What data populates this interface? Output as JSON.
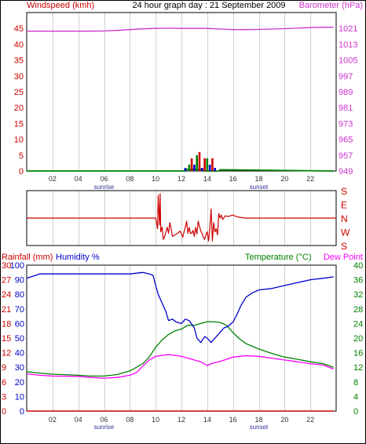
{
  "header": {
    "title": "24 hour graph day : 21 September 2009",
    "wind_label": "Windspeed (kmh)",
    "baro_label": "Barometer (hPa)"
  },
  "colors": {
    "background": "#ffffff",
    "frame": "#000000",
    "grid": "#d0d0d0",
    "wind_axis": "#cc0000",
    "baro": "#cc33cc",
    "temp": "#008000",
    "humidity": "#0000cc",
    "dewpoint": "#ff00ff",
    "rain": "#cc0000",
    "compass": "#cc0000"
  },
  "chart_data": [
    {
      "type": "line",
      "panel": "wind-barometer",
      "title": "24 hour graph day : 21 September 2009",
      "x_ticks": [
        "02",
        "04",
        "06",
        "08",
        "10",
        "12",
        "14",
        "16",
        "18",
        "20",
        "22"
      ],
      "x_annotations": [
        {
          "hour": 6,
          "label": "sunrise"
        },
        {
          "hour": 18,
          "label": "sunset"
        }
      ],
      "xlim": [
        0,
        24
      ],
      "left_axis": {
        "label": "Windspeed (kmh)",
        "ylim": [
          0,
          50
        ],
        "ticks": [
          0,
          5,
          10,
          15,
          20,
          25,
          30,
          35,
          40,
          45
        ]
      },
      "right_axis": {
        "label": "Barometer (hPa)",
        "ylim": [
          949,
          1029
        ],
        "ticks": [
          949,
          957,
          965,
          973,
          981,
          989,
          997,
          1005,
          1013,
          1021
        ]
      },
      "series": [
        {
          "name": "Barometer (hPa)",
          "axis": "right",
          "x": [
            0,
            2,
            4,
            5,
            6,
            7,
            8,
            9,
            10,
            11,
            12,
            13,
            14,
            15,
            16,
            17,
            18,
            19,
            20,
            21,
            22,
            23,
            23.8
          ],
          "y": [
            1019.6,
            1019.6,
            1019.6,
            1019.6,
            1019.7,
            1020.0,
            1020.4,
            1020.8,
            1021.0,
            1021.1,
            1021.0,
            1021.0,
            1021.0,
            1020.7,
            1020.4,
            1020.4,
            1020.5,
            1020.7,
            1020.9,
            1021.1,
            1021.4,
            1021.6,
            1021.6
          ]
        },
        {
          "name": "Wind speed",
          "axis": "left",
          "x": [
            0,
            12.3,
            12.4,
            13.6,
            13.7,
            14.9,
            15.0,
            23.8
          ],
          "y": [
            0,
            0,
            0.5,
            0.5,
            0,
            0,
            0.4,
            0
          ]
        }
      ],
      "bars": [
        {
          "hour": 12.3,
          "value": 1,
          "color": "#0000cc"
        },
        {
          "hour": 12.6,
          "value": 2,
          "color": "#008000"
        },
        {
          "hour": 12.8,
          "value": 4,
          "color": "#cc0000"
        },
        {
          "hour": 13.0,
          "value": 2,
          "color": "#0000cc"
        },
        {
          "hour": 13.2,
          "value": 5,
          "color": "#008000"
        },
        {
          "hour": 13.4,
          "value": 6,
          "color": "#cc0000"
        },
        {
          "hour": 13.6,
          "value": 1,
          "color": "#0000cc"
        },
        {
          "hour": 13.8,
          "value": 4,
          "color": "#cc0000"
        },
        {
          "hour": 14.0,
          "value": 4,
          "color": "#008000"
        },
        {
          "hour": 14.2,
          "value": 2,
          "color": "#0000cc"
        },
        {
          "hour": 14.4,
          "value": 4,
          "color": "#cc0000"
        },
        {
          "hour": 14.6,
          "value": 1,
          "color": "#0000cc"
        }
      ]
    },
    {
      "type": "line",
      "panel": "wind-direction",
      "xlim": [
        0,
        24
      ],
      "compass_labels": [
        "S",
        "E",
        "N",
        "W",
        "S"
      ],
      "ylim": [
        0,
        360
      ],
      "note": "y is degrees: S=0 at top, E=90, N=180 (center), W=270, S=360 at bottom",
      "series": [
        {
          "name": "Wind direction",
          "x": [
            0,
            10.0,
            10.15,
            10.2,
            10.3,
            10.35,
            10.4,
            10.5,
            10.6,
            10.7,
            10.8,
            10.9,
            11.0,
            11.1,
            11.2,
            11.3,
            11.5,
            11.7,
            11.9,
            12.1,
            12.3,
            12.4,
            12.5,
            12.6,
            12.7,
            12.8,
            12.9,
            13.0,
            13.1,
            13.2,
            13.3,
            13.5,
            13.6,
            13.7,
            13.8,
            13.9,
            14.0,
            14.1,
            14.2,
            14.3,
            14.4,
            14.5,
            14.6,
            14.7,
            14.8,
            14.9,
            15.0,
            15.1,
            15.2,
            15.4,
            15.6,
            15.8,
            16.0,
            16.2,
            16.5,
            17,
            24
          ],
          "y": [
            180,
            180,
            250,
            30,
            225,
            20,
            270,
            240,
            320,
            300,
            270,
            240,
            280,
            210,
            250,
            300,
            290,
            280,
            265,
            305,
            240,
            200,
            280,
            240,
            280,
            280,
            260,
            300,
            240,
            285,
            200,
            265,
            280,
            305,
            320,
            290,
            270,
            330,
            250,
            120,
            330,
            210,
            270,
            250,
            290,
            150,
            180,
            160,
            190,
            165,
            170,
            165,
            160,
            168,
            175,
            180,
            180
          ]
        }
      ]
    },
    {
      "type": "line",
      "panel": "temperature-humidity",
      "x_ticks": [
        "02",
        "04",
        "06",
        "08",
        "10",
        "12",
        "14",
        "16",
        "18",
        "20",
        "22"
      ],
      "x_annotations": [
        {
          "hour": 6,
          "label": "sunrise"
        },
        {
          "hour": 18,
          "label": "sunset"
        }
      ],
      "xlim": [
        0,
        24
      ],
      "header": {
        "rain_label": "Rainfall (mm)",
        "humidity_label": "Humidity %",
        "temp_label": "Temperature (°C)",
        "dew_label": "Dew Point"
      },
      "rain_axis": {
        "ylim": [
          0,
          30
        ],
        "ticks": [
          "0",
          "3",
          "6",
          "9",
          "12",
          "15",
          "18",
          "21",
          "24",
          "27",
          "30"
        ]
      },
      "humidity_axis": {
        "ylim": [
          0,
          100
        ],
        "ticks": [
          "0",
          "10",
          "20",
          "30",
          "40",
          "50",
          "60",
          "70",
          "80",
          "90",
          "100"
        ]
      },
      "temp_axis": {
        "ylim": [
          0,
          40
        ],
        "ticks": [
          "0",
          "4",
          "8",
          "12",
          "16",
          "20",
          "24",
          "28",
          "32",
          "36",
          "40"
        ]
      },
      "series": [
        {
          "name": "Humidity %",
          "axis": "humidity",
          "x": [
            0,
            1,
            2,
            4,
            6,
            8,
            9,
            9.5,
            9.8,
            10.0,
            10.2,
            10.5,
            10.8,
            11.0,
            11.3,
            11.6,
            12.0,
            12.3,
            12.6,
            13.0,
            13.2,
            13.5,
            13.8,
            14.0,
            14.3,
            14.6,
            15.0,
            15.3,
            15.6,
            16.0,
            16.3,
            16.6,
            17.0,
            17.5,
            18,
            19,
            20,
            21,
            22,
            23,
            23.8
          ],
          "y": [
            91,
            94,
            94,
            94,
            94,
            94,
            95,
            94,
            93,
            86,
            80,
            74,
            68,
            62,
            63,
            61,
            60,
            63,
            62,
            57,
            50,
            47,
            51,
            50,
            47,
            50,
            54,
            57,
            58,
            61,
            66,
            72,
            78,
            81,
            83,
            84,
            86,
            88,
            90,
            91,
            92
          ]
        },
        {
          "name": "Temperature (°C)",
          "axis": "temp",
          "x": [
            0,
            1,
            2,
            4,
            5,
            6,
            7,
            8,
            9,
            9.5,
            10,
            10.5,
            11,
            11.5,
            12,
            12.5,
            13,
            13.5,
            14,
            14.5,
            15,
            15.5,
            16,
            16.5,
            17,
            18,
            19,
            20,
            21,
            22,
            23,
            23.8
          ],
          "y": [
            10.8,
            10.4,
            10.1,
            9.8,
            9.6,
            9.6,
            10,
            11,
            13,
            14.8,
            17.5,
            19.5,
            21,
            22,
            22.5,
            23.5,
            23.5,
            24,
            24.5,
            24.5,
            24.3,
            23.5,
            21.5,
            19.8,
            18.5,
            17,
            15.8,
            14.8,
            14.2,
            13.5,
            13,
            12
          ]
        },
        {
          "name": "Dew Point",
          "axis": "temp",
          "x": [
            0,
            1,
            2,
            4,
            5,
            6,
            7,
            8,
            8.5,
            9,
            9.5,
            10,
            11,
            12,
            13,
            13.5,
            14,
            14.5,
            15,
            15.5,
            16,
            17,
            18,
            19,
            20,
            21,
            22,
            23,
            23.8
          ],
          "y": [
            10.2,
            9.8,
            9.6,
            9.5,
            9.2,
            9.0,
            9.2,
            9.8,
            10.5,
            12.3,
            14,
            15,
            15.5,
            15,
            14,
            13.5,
            12.5,
            13.2,
            13.6,
            14.2,
            14.8,
            15.2,
            15,
            14.5,
            14,
            13.5,
            13,
            12.6,
            11.5
          ]
        },
        {
          "name": "Rainfall (mm)",
          "axis": "rain",
          "x": [
            0,
            23.8
          ],
          "y": [
            0,
            0
          ]
        }
      ]
    }
  ]
}
